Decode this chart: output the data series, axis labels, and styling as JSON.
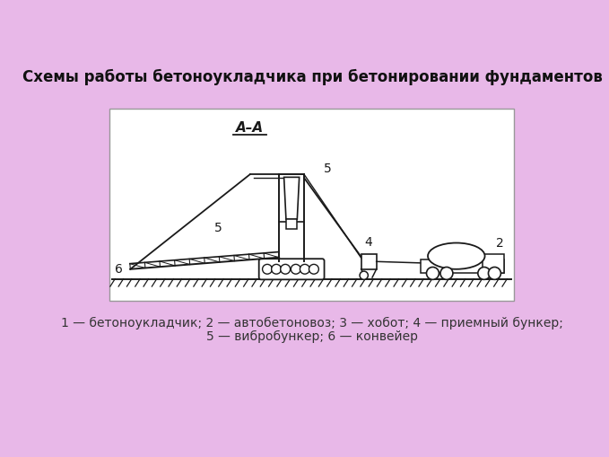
{
  "bg_color": "#e8b8e8",
  "title": "Схемы работы бетоноукладчика при бетонировании фундаментов",
  "title_fontsize": 12,
  "caption_line1": "1 — бетоноукладчик; 2 — автобетоновоз; 3 — хобот; 4 — приемный бункер;",
  "caption_line2": "5 — вибробункер; 6 — конвейер",
  "caption_fontsize": 10,
  "line_color": "#1a1a1a",
  "label_aa": "A–A"
}
